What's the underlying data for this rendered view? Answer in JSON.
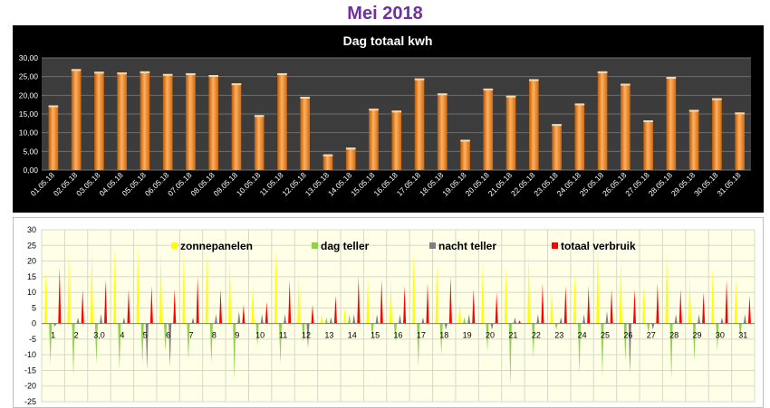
{
  "page_title": "Mei 2018",
  "chart_data": [
    {
      "type": "bar",
      "title": "Dag totaal kwh",
      "xlabel": "",
      "ylabel": "",
      "ylim": [
        0,
        30
      ],
      "yticks": [
        "0,00",
        "5,00",
        "10,00",
        "15,00",
        "20,00",
        "25,00",
        "30,00"
      ],
      "grid": true,
      "colors": {
        "background": "#000000",
        "plot": "#3c3c3c",
        "bar": "#f08a24",
        "text": "#ffffff"
      },
      "categories": [
        "01.05.18",
        "02.05.18",
        "03.05.18",
        "04.05.18",
        "05.05.18",
        "06.05.18",
        "07.05.18",
        "08.05.18",
        "09.05.18",
        "10.05.18",
        "11.05.18",
        "12.05.18",
        "13.05.18",
        "14.05.18",
        "15.05.18",
        "16.05.18",
        "17.05.18",
        "18.05.18",
        "19.05.18",
        "20.05.18",
        "21.05.18",
        "22.05.18",
        "23.05.18",
        "24.05.18",
        "25.05.18",
        "26.05.18",
        "27.05.18",
        "28.05.18",
        "29.05.18",
        "30.05.18",
        "31.05.18"
      ],
      "values": [
        17.3,
        27.0,
        26.3,
        26.1,
        26.4,
        25.7,
        25.9,
        25.4,
        23.2,
        14.7,
        25.9,
        19.6,
        4.2,
        6.0,
        16.4,
        15.9,
        24.5,
        20.5,
        8.1,
        21.8,
        19.9,
        24.3,
        12.3,
        17.8,
        26.4,
        23.1,
        13.3,
        24.9,
        16.1,
        19.2,
        15.4
      ]
    },
    {
      "type": "line",
      "title": "",
      "xlabel": "",
      "ylabel": "",
      "ylim": [
        -25,
        30
      ],
      "yticks": [
        "-25",
        "-20",
        "-15",
        "-10",
        "-5",
        "0",
        "5",
        "10",
        "15",
        "20",
        "25",
        "30"
      ],
      "grid": true,
      "legend": "top",
      "colors": {
        "background": "#ffffe8",
        "grid": "#d8d8c8"
      },
      "categories": [
        "1",
        "2",
        "3,0",
        "4",
        "5",
        "6",
        "7",
        "8",
        "9",
        "10",
        "11",
        "12",
        "13",
        "14",
        "15",
        "16",
        "17",
        "18",
        "19",
        "20",
        "21",
        "22",
        "23",
        "24",
        "25",
        "26",
        "27",
        "28",
        "29",
        "30",
        "31"
      ],
      "series": [
        {
          "name": "zonnepanelen",
          "color": "#ffff00",
          "values": [
            17,
            24,
            24,
            24,
            25,
            24,
            23,
            23,
            21,
            13,
            24,
            16,
            3,
            5,
            15,
            14,
            23,
            19,
            7,
            20,
            18,
            22,
            11,
            16,
            25,
            21,
            12,
            23,
            15,
            18,
            14
          ]
        },
        {
          "name": "dag teller",
          "color": "#92d050",
          "values": [
            -13,
            -17,
            -13,
            -15,
            -13,
            -9,
            -12,
            -13,
            -18,
            -7,
            -13,
            -6,
            2,
            3,
            -5,
            -6,
            -14,
            -10,
            2,
            -9,
            -20,
            -11,
            -2,
            -16,
            -17,
            -12,
            -3,
            -18,
            -12,
            -9,
            -5
          ]
        },
        {
          "name": "nacht teller",
          "color": "#7f7f7f",
          "values": [
            -1,
            2,
            3,
            2,
            -15,
            -14,
            2,
            3,
            4,
            3,
            3,
            -8,
            2,
            3,
            3,
            3,
            2,
            -2,
            3,
            -2,
            2,
            3,
            2,
            3,
            4,
            -16,
            -2,
            3,
            3,
            2,
            3
          ]
        },
        {
          "name": "totaal verbruik",
          "color": "#ff0000",
          "values": [
            18,
            11,
            14,
            11,
            12,
            11,
            15,
            11,
            6,
            7,
            14,
            6,
            9,
            15,
            14,
            12,
            13,
            15,
            11,
            10,
            1,
            13,
            12,
            12,
            11,
            11,
            13,
            11,
            10,
            14,
            9
          ]
        }
      ]
    }
  ]
}
